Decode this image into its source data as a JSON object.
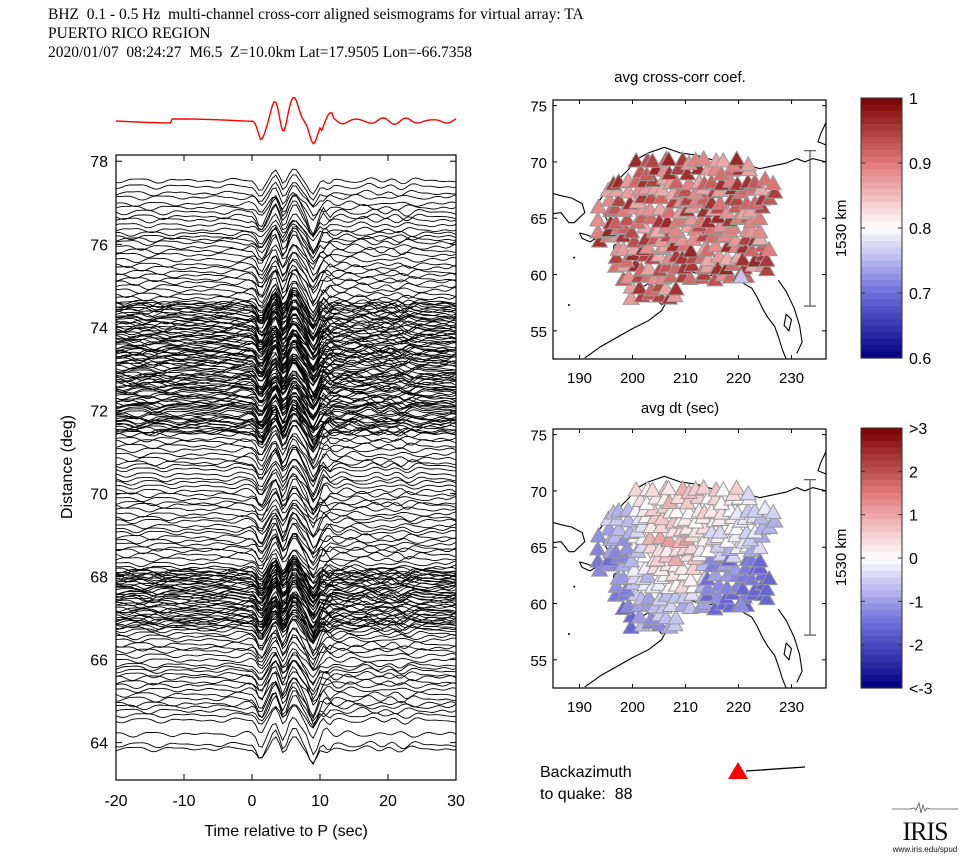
{
  "header": {
    "line1": "BHZ  0.1 - 0.5 Hz  multi-channel cross-corr aligned seismograms for virtual array: TA",
    "line2": "PUERTO RICO REGION",
    "line3": "2020/01/07  08:24:27  M6.5  Z=10.0km Lat=17.9505 Lon=-66.7358"
  },
  "chart_data": [
    {
      "type": "line",
      "name": "aligned-seismograms",
      "title": "",
      "xlabel": "Time relative to P (sec)",
      "ylabel": "Distance (deg)",
      "xlim": [
        -20,
        30
      ],
      "ylim": [
        63.1,
        78.15
      ],
      "xticks": [
        -20,
        -10,
        0,
        10,
        20,
        30
      ],
      "yticks": [
        64,
        66,
        68,
        70,
        72,
        74,
        76,
        78
      ],
      "trace_color": "#000000",
      "stack_color": "#ff0000",
      "p_arrival_sec": 0,
      "notes": "Hundreds of black traces stacked by epicentral distance; red stacked beam on top",
      "dense_bands_deg": [
        [
          73.8,
          74.2
        ],
        [
          72.0,
          73.0
        ],
        [
          67.3,
          67.8
        ]
      ]
    },
    {
      "type": "scatter",
      "name": "avg-cross-corr-coef-map",
      "title": "avg cross-corr coef.",
      "xlabel": "",
      "ylabel": "",
      "xlim": [
        185,
        236.5
      ],
      "ylim": [
        52.5,
        75.5
      ],
      "xticks": [
        190,
        200,
        210,
        220,
        230
      ],
      "yticks": [
        55,
        60,
        65,
        70,
        75
      ],
      "scale_bar_label": "1530 km",
      "colorbar": {
        "min": 0.6,
        "max": 1,
        "ticks": [
          "1",
          "0.9",
          "0.8",
          "0.7",
          "0.6"
        ]
      },
      "marker": "triangle",
      "value_summary": "Most stations 0.85-0.97 (reds); one station near 220,59.7 ~0.76 (light blue)"
    },
    {
      "type": "scatter",
      "name": "avg-dt-map",
      "title": "avg dt (sec)",
      "xlabel": "",
      "ylabel": "",
      "xlim": [
        185,
        236.5
      ],
      "ylim": [
        52.5,
        75.5
      ],
      "xticks": [
        190,
        200,
        210,
        220,
        230
      ],
      "yticks": [
        55,
        60,
        65,
        70,
        75
      ],
      "scale_bar_label": "1530 km",
      "colorbar": {
        "min": -3,
        "max": 3,
        "ticks": [
          ">3",
          "2",
          "1",
          "0",
          "-1",
          "-2",
          "<-3"
        ]
      },
      "marker": "triangle",
      "value_summary": "Values mostly between -1.5 and +1.2; west and south-east stations negative (blue), central stations positive (pink)"
    }
  ],
  "seismo": {
    "xlabel": "Time relative to P (sec)",
    "ylabel": "Distance (deg)",
    "xtick_labels": [
      "-20",
      "-10",
      "0",
      "10",
      "20",
      "30"
    ],
    "ytick_labels": [
      "64",
      "66",
      "68",
      "70",
      "72",
      "74",
      "76",
      "78"
    ]
  },
  "map_top": {
    "title": "avg cross-corr coef.",
    "xtick_labels": [
      "190",
      "200",
      "210",
      "220",
      "230"
    ],
    "ytick_labels": [
      "55",
      "60",
      "65",
      "70",
      "75"
    ],
    "scale_label": "1530 km",
    "cbar_labels": [
      "1",
      "0.9",
      "0.8",
      "0.7",
      "0.6"
    ]
  },
  "map_bottom": {
    "title": "avg dt (sec)",
    "xtick_labels": [
      "190",
      "200",
      "210",
      "220",
      "230"
    ],
    "ytick_labels": [
      "55",
      "60",
      "65",
      "70",
      "75"
    ],
    "scale_label": "1530 km",
    "cbar_labels": [
      ">3",
      "2",
      "1",
      "0",
      "-1",
      "-2",
      "<-3"
    ]
  },
  "backazimuth": {
    "label_line1": "Backazimuth",
    "label_line2": "to quake:",
    "value": "88",
    "arrow_color": "#ff0000"
  },
  "logo": {
    "word": "IRIS",
    "url": "www.iris.edu/spud"
  }
}
